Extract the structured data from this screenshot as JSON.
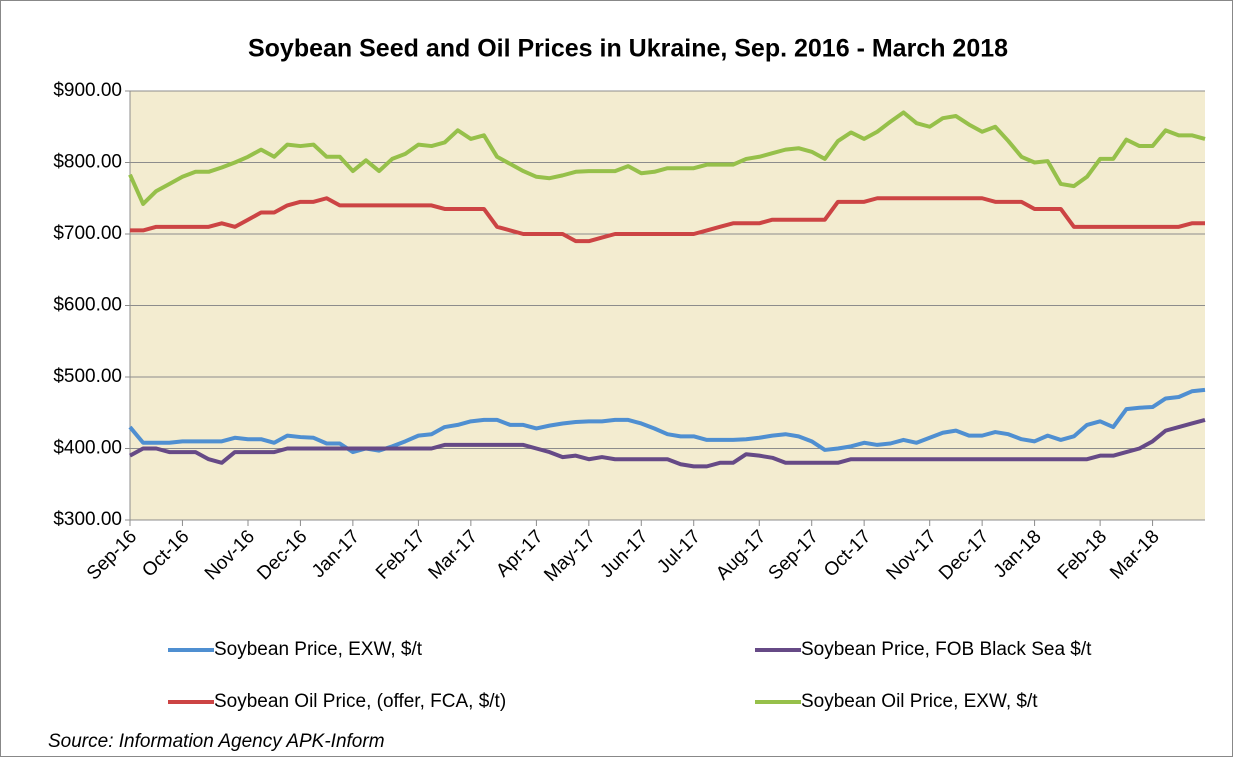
{
  "chart_data": {
    "type": "line",
    "title": "Soybean Seed and Oil Prices in Ukraine, Sep. 2016 - March 2018",
    "source": "Source:  Information  Agency  APK-Inform",
    "categories": [
      "Sep-16",
      null,
      null,
      null,
      "Oct-16",
      null,
      null,
      null,
      null,
      "Nov-16",
      null,
      null,
      null,
      "Dec-16",
      null,
      null,
      null,
      "Jan-17",
      null,
      null,
      null,
      null,
      "Feb-17",
      null,
      null,
      null,
      "Mar-17",
      null,
      null,
      null,
      null,
      "Apr-17",
      null,
      null,
      null,
      "May-17",
      null,
      null,
      null,
      "Jun-17",
      null,
      null,
      null,
      "Jul-17",
      null,
      null,
      null,
      null,
      "Aug-17",
      null,
      null,
      null,
      "Sep-17",
      null,
      null,
      null,
      "Oct-17",
      null,
      null,
      null,
      null,
      "Nov-17",
      null,
      null,
      null,
      "Dec-17",
      null,
      null,
      null,
      "Jan-18",
      null,
      null,
      null,
      null,
      "Feb-18",
      null,
      null,
      null,
      "Mar-18",
      null,
      null,
      null,
      null
    ],
    "series": [
      {
        "name": "Soybean Price, EXW, $/t",
        "color": "#4f8fd1",
        "values": [
          430,
          408,
          408,
          408,
          410,
          410,
          410,
          410,
          415,
          413,
          413,
          408,
          418,
          416,
          415,
          407,
          407,
          395,
          400,
          397,
          403,
          410,
          418,
          420,
          430,
          433,
          438,
          440,
          440,
          433,
          433,
          428,
          432,
          435,
          437,
          438,
          438,
          440,
          440,
          435,
          428,
          420,
          417,
          417,
          412,
          412,
          412,
          413,
          415,
          418,
          420,
          417,
          410,
          398,
          400,
          403,
          408,
          405,
          407,
          412,
          408,
          415,
          422,
          425,
          418,
          418,
          423,
          420,
          413,
          410,
          418,
          412,
          417,
          433,
          438,
          430,
          455,
          457,
          458,
          470,
          472,
          480,
          482
        ]
      },
      {
        "name": "Soybean Price, FOB Black Sea $/t",
        "color": "#664a86",
        "values": [
          390,
          400,
          400,
          395,
          395,
          395,
          385,
          380,
          395,
          395,
          395,
          395,
          400,
          400,
          400,
          400,
          400,
          400,
          400,
          400,
          400,
          400,
          400,
          400,
          405,
          405,
          405,
          405,
          405,
          405,
          405,
          400,
          395,
          388,
          390,
          385,
          388,
          385,
          385,
          385,
          385,
          385,
          378,
          375,
          375,
          380,
          380,
          392,
          390,
          387,
          380,
          380,
          380,
          380,
          380,
          385,
          385,
          385,
          385,
          385,
          385,
          385,
          385,
          385,
          385,
          385,
          385,
          385,
          385,
          385,
          385,
          385,
          385,
          385,
          390,
          390,
          395,
          400,
          410,
          425,
          430,
          435,
          440
        ]
      },
      {
        "name": "Soybean Oil Price, (offer, FCA, $/t)",
        "color": "#cc4444",
        "values": [
          705,
          705,
          710,
          710,
          710,
          710,
          710,
          715,
          710,
          720,
          730,
          730,
          740,
          745,
          745,
          750,
          740,
          740,
          740,
          740,
          740,
          740,
          740,
          740,
          735,
          735,
          735,
          735,
          710,
          705,
          700,
          700,
          700,
          700,
          690,
          690,
          695,
          700,
          700,
          700,
          700,
          700,
          700,
          700,
          705,
          710,
          715,
          715,
          715,
          720,
          720,
          720,
          720,
          720,
          745,
          745,
          745,
          750,
          750,
          750,
          750,
          750,
          750,
          750,
          750,
          750,
          745,
          745,
          745,
          735,
          735,
          735,
          710,
          710,
          710,
          710,
          710,
          710,
          710,
          710,
          710,
          715,
          715
        ]
      },
      {
        "name": "Soybean Oil Price, EXW, $/t",
        "color": "#96c04a",
        "values": [
          783,
          742,
          760,
          770,
          780,
          787,
          787,
          793,
          800,
          808,
          818,
          808,
          825,
          823,
          825,
          808,
          808,
          788,
          803,
          788,
          805,
          812,
          825,
          823,
          828,
          845,
          833,
          838,
          808,
          798,
          788,
          780,
          778,
          782,
          787,
          788,
          788,
          788,
          795,
          785,
          787,
          792,
          792,
          792,
          797,
          797,
          797,
          805,
          808,
          813,
          818,
          820,
          815,
          805,
          830,
          842,
          833,
          843,
          857,
          870,
          855,
          850,
          862,
          865,
          853,
          843,
          850,
          830,
          808,
          800,
          802,
          770,
          767,
          780,
          805,
          805,
          832,
          823,
          823,
          845,
          838,
          838,
          833
        ]
      }
    ],
    "ylim": [
      300,
      900
    ],
    "yticks": [
      {
        "value": 300,
        "label": "$300.00"
      },
      {
        "value": 400,
        "label": "$400.00"
      },
      {
        "value": 500,
        "label": "$500.00"
      },
      {
        "value": 600,
        "label": "$600.00"
      },
      {
        "value": 700,
        "label": "$700.00"
      },
      {
        "value": 800,
        "label": "$800.00"
      },
      {
        "value": 900,
        "label": "$900.00"
      }
    ],
    "grid": true,
    "plot_background": "#f3ecd0"
  }
}
